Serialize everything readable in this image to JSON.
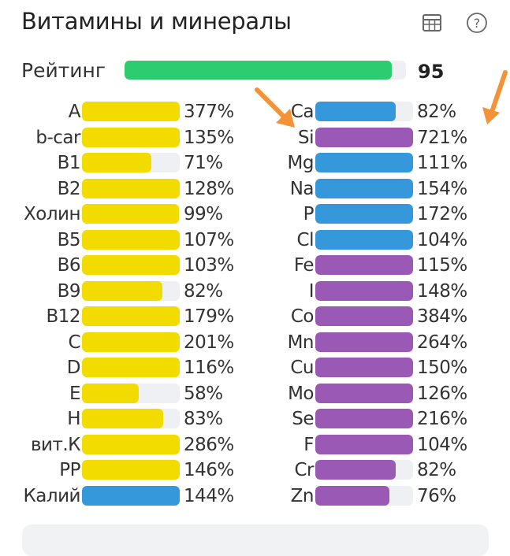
{
  "header": {
    "title": "Витамины и минералы",
    "icons": [
      "table-icon",
      "help-icon"
    ]
  },
  "rating": {
    "label": "Рейтинг",
    "value": 95,
    "max": 100,
    "color": "#2ecc71"
  },
  "colors": {
    "yellow": "#f2dc00",
    "blue": "#3498db",
    "purple": "#9b59b6",
    "track": "#eef0f3",
    "arrow": "#f39237"
  },
  "vitamins": [
    {
      "label": "A",
      "pct": "377%",
      "value": 377,
      "color": "yellow"
    },
    {
      "label": "b-car",
      "pct": "135%",
      "value": 135,
      "color": "yellow"
    },
    {
      "label": "B1",
      "pct": "71%",
      "value": 71,
      "color": "yellow"
    },
    {
      "label": "B2",
      "pct": "128%",
      "value": 128,
      "color": "yellow"
    },
    {
      "label": "Холин",
      "pct": "99%",
      "value": 99,
      "color": "yellow"
    },
    {
      "label": "B5",
      "pct": "107%",
      "value": 107,
      "color": "yellow"
    },
    {
      "label": "B6",
      "pct": "103%",
      "value": 103,
      "color": "yellow"
    },
    {
      "label": "B9",
      "pct": "82%",
      "value": 82,
      "color": "yellow"
    },
    {
      "label": "B12",
      "pct": "179%",
      "value": 179,
      "color": "yellow"
    },
    {
      "label": "C",
      "pct": "201%",
      "value": 201,
      "color": "yellow"
    },
    {
      "label": "D",
      "pct": "116%",
      "value": 116,
      "color": "yellow"
    },
    {
      "label": "E",
      "pct": "58%",
      "value": 58,
      "color": "yellow"
    },
    {
      "label": "H",
      "pct": "83%",
      "value": 83,
      "color": "yellow"
    },
    {
      "label": "вит.К",
      "pct": "286%",
      "value": 286,
      "color": "yellow"
    },
    {
      "label": "PP",
      "pct": "146%",
      "value": 146,
      "color": "yellow"
    },
    {
      "label": "Калий",
      "pct": "144%",
      "value": 144,
      "color": "blue"
    }
  ],
  "minerals": [
    {
      "label": "Ca",
      "pct": "82%",
      "value": 82,
      "color": "blue"
    },
    {
      "label": "Si",
      "pct": "721%",
      "value": 721,
      "color": "purple"
    },
    {
      "label": "Mg",
      "pct": "111%",
      "value": 111,
      "color": "blue"
    },
    {
      "label": "Na",
      "pct": "154%",
      "value": 154,
      "color": "blue"
    },
    {
      "label": "P",
      "pct": "172%",
      "value": 172,
      "color": "blue"
    },
    {
      "label": "Cl",
      "pct": "104%",
      "value": 104,
      "color": "blue"
    },
    {
      "label": "Fe",
      "pct": "115%",
      "value": 115,
      "color": "purple"
    },
    {
      "label": "I",
      "pct": "148%",
      "value": 148,
      "color": "purple"
    },
    {
      "label": "Co",
      "pct": "384%",
      "value": 384,
      "color": "purple"
    },
    {
      "label": "Mn",
      "pct": "264%",
      "value": 264,
      "color": "purple"
    },
    {
      "label": "Cu",
      "pct": "150%",
      "value": 150,
      "color": "purple"
    },
    {
      "label": "Mo",
      "pct": "126%",
      "value": 126,
      "color": "purple"
    },
    {
      "label": "Se",
      "pct": "216%",
      "value": 216,
      "color": "purple"
    },
    {
      "label": "F",
      "pct": "104%",
      "value": 104,
      "color": "purple"
    },
    {
      "label": "Cr",
      "pct": "82%",
      "value": 82,
      "color": "purple"
    },
    {
      "label": "Zn",
      "pct": "76%",
      "value": 76,
      "color": "purple"
    }
  ]
}
